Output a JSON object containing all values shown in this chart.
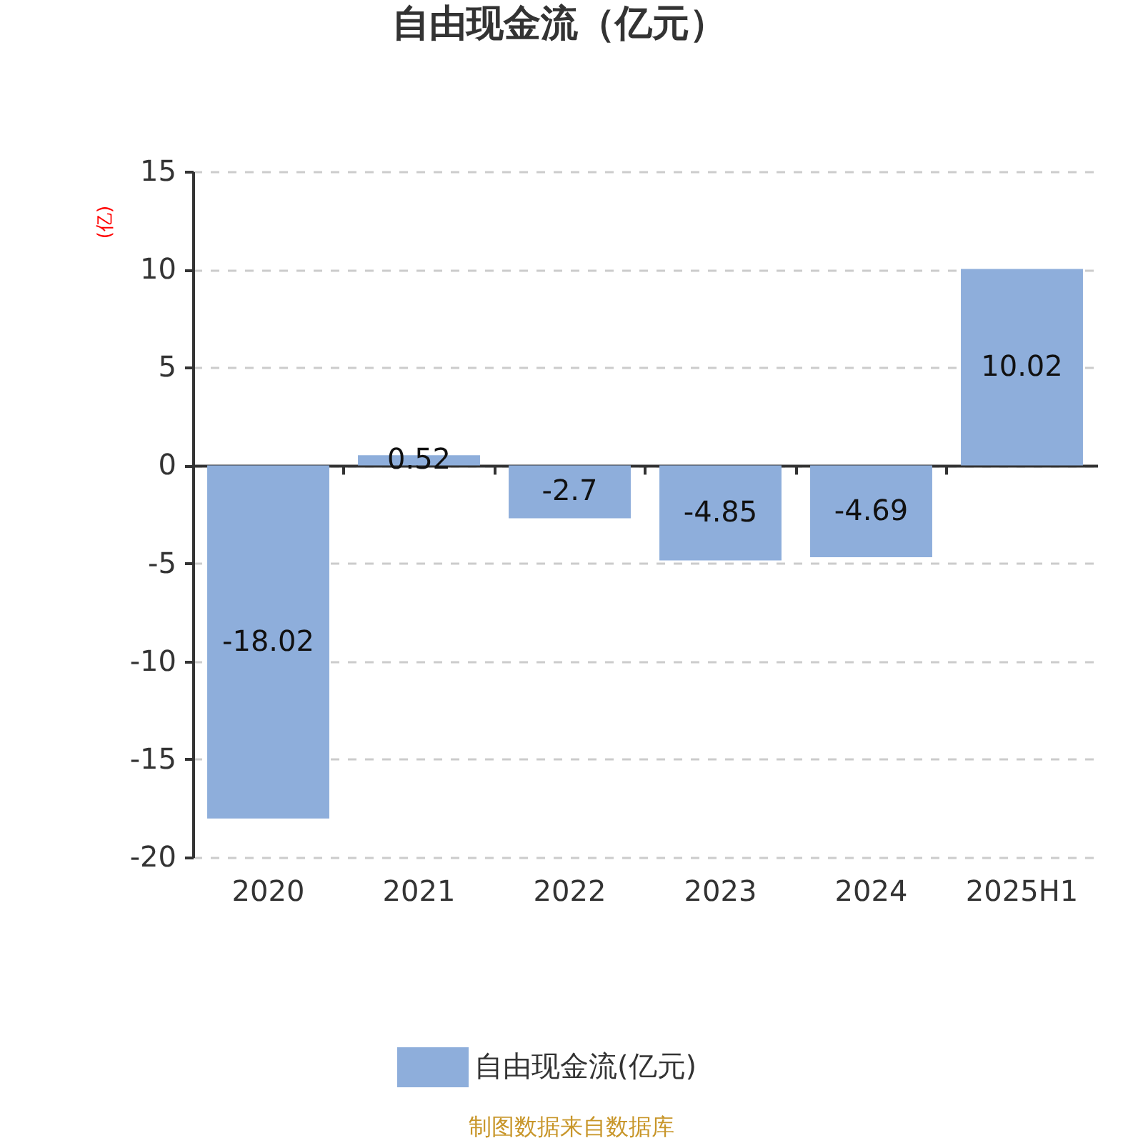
{
  "chart_data": {
    "type": "bar",
    "title": "自由现金流（亿元）",
    "ylabel": "(亿)",
    "categories": [
      "2020",
      "2021",
      "2022",
      "2023",
      "2024",
      "2025H1"
    ],
    "series": [
      {
        "name": "自由现金流(亿元)",
        "color": "#8eaedb",
        "values": [
          -18.02,
          0.52,
          -2.7,
          -4.85,
          -4.69,
          10.02
        ]
      }
    ],
    "ylim": [
      -20,
      15
    ],
    "yticks": [
      -20,
      -15,
      -10,
      -5,
      0,
      5,
      10,
      15
    ],
    "grid": "y",
    "legend": "bottom",
    "data_labels": true,
    "annotations": [
      "制图数据来自数据库"
    ]
  }
}
